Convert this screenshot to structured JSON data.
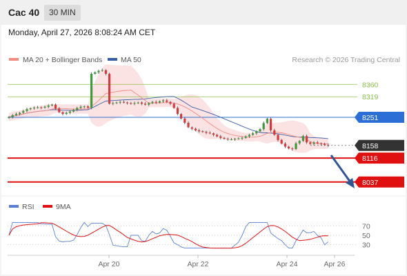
{
  "header": {
    "symbol": "Cac 40",
    "timeframe": "30 MIN"
  },
  "datetime": "Monday, April 27, 2026 8:08:24 AM CET",
  "legend": {
    "ma20": {
      "label": "MA 20 + Bollinger Bands",
      "color": "#f28b82"
    },
    "ma50": {
      "label": "MA 50",
      "color": "#3a5da8"
    }
  },
  "research": "Research © 2026 Trading Central",
  "levels": {
    "r2": {
      "value": "8360",
      "color": "#8dc04a"
    },
    "r1": {
      "value": "8319",
      "color": "#8dc04a"
    },
    "pivot": {
      "value": "8251",
      "color": "#2b6fd6"
    },
    "last": {
      "value": "8158",
      "color": "#333333"
    },
    "s1": {
      "value": "8116",
      "color": "#e01010"
    },
    "s2": {
      "value": "8037",
      "color": "#e01010"
    }
  },
  "rsi_legend": {
    "rsi": {
      "label": "RSI",
      "color": "#5b7fd6"
    },
    "ma9": {
      "label": "9MA",
      "color": "#e01010"
    }
  },
  "rsi_levels": [
    "70",
    "50",
    "30"
  ],
  "x_labels": [
    "Apr 20",
    "Apr 22",
    "Apr 24",
    "Apr 26"
  ],
  "chart_data": {
    "type": "candlestick",
    "title": "Cac 40",
    "timeframe": "30 MIN",
    "price_range": [
      8000,
      8420
    ],
    "levels": [
      8360,
      8319,
      8251,
      8158,
      8116,
      8037
    ],
    "close": [
      8252,
      8258,
      8262,
      8266,
      8272,
      8278,
      8281,
      8283,
      8284,
      8283,
      8286,
      8290,
      8293,
      8280,
      8268,
      8262,
      8266,
      8270,
      8276,
      8282,
      8286,
      8287,
      8283,
      8395,
      8400,
      8405,
      8407,
      8395,
      8296,
      8298,
      8300,
      8302,
      8300,
      8298,
      8296,
      8298,
      8300,
      8296,
      8293,
      8298,
      8302,
      8300,
      8304,
      8307,
      8302,
      8296,
      8282,
      8262,
      8247,
      8233,
      8218,
      8213,
      8208,
      8205,
      8203,
      8200,
      8198,
      8193,
      8188,
      8183,
      8180,
      8178,
      8178,
      8180,
      8181,
      8183,
      8188,
      8193,
      8198,
      8205,
      8212,
      8232,
      8246,
      8208,
      8193,
      8176,
      8164,
      8154,
      8148,
      8146,
      8165,
      8173,
      8189,
      8168,
      8163,
      8168,
      8165,
      8163,
      8160,
      8158
    ],
    "rsi": {
      "levels": [
        70,
        50,
        30
      ]
    }
  }
}
